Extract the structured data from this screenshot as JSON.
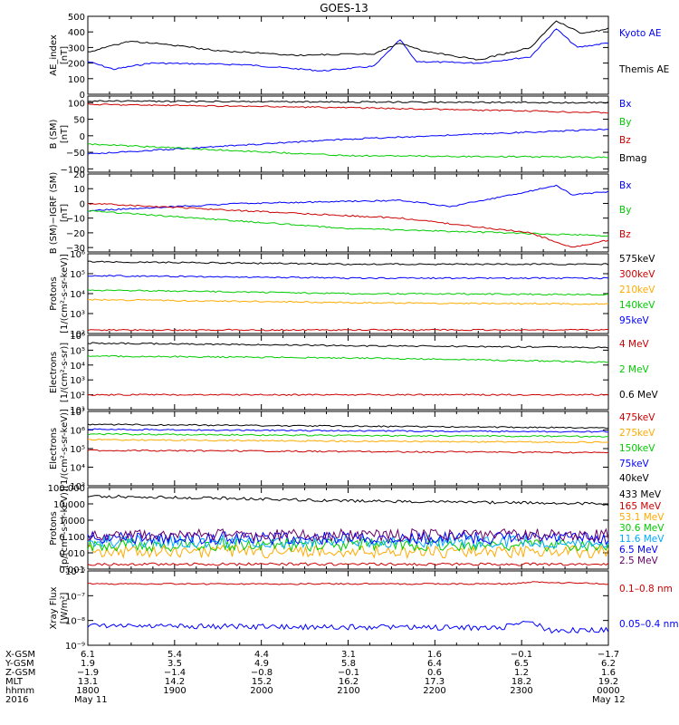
{
  "title": "GOES-13",
  "chart_data": [
    {
      "type": "line",
      "ylabel": [
        "AE_index",
        "[nT]"
      ],
      "ylim": [
        0,
        500
      ],
      "yscale": "linear",
      "yticks": [
        0,
        100,
        200,
        300,
        400,
        500
      ],
      "yticklabels": [
        "0",
        "100",
        "200",
        "300",
        "400",
        "500"
      ],
      "series": [
        {
          "name": "Kyoto AE",
          "color": "#0000ff",
          "keypoints": [
            [
              0,
              210
            ],
            [
              0.05,
              160
            ],
            [
              0.12,
              200
            ],
            [
              0.3,
              190
            ],
            [
              0.45,
              150
            ],
            [
              0.55,
              180
            ],
            [
              0.6,
              350
            ],
            [
              0.63,
              210
            ],
            [
              0.75,
              200
            ],
            [
              0.85,
              240
            ],
            [
              0.9,
              420
            ],
            [
              0.94,
              300
            ],
            [
              1.0,
              330
            ]
          ]
        },
        {
          "name": "Themis AE",
          "color": "#000000",
          "keypoints": [
            [
              0,
              270
            ],
            [
              0.08,
              340
            ],
            [
              0.15,
              320
            ],
            [
              0.25,
              280
            ],
            [
              0.4,
              250
            ],
            [
              0.55,
              260
            ],
            [
              0.6,
              330
            ],
            [
              0.64,
              280
            ],
            [
              0.75,
              220
            ],
            [
              0.85,
              300
            ],
            [
              0.9,
              470
            ],
            [
              0.95,
              390
            ],
            [
              1.0,
              420
            ]
          ]
        }
      ]
    },
    {
      "type": "line",
      "ylabel": [
        "B (SM)",
        "[nT]"
      ],
      "ylim": [
        -110,
        120
      ],
      "yscale": "linear",
      "yticks": [
        -100,
        -50,
        0,
        50,
        100
      ],
      "yticklabels": [
        "−100",
        "−50",
        "0",
        "50",
        "100"
      ],
      "series": [
        {
          "name": "Bx",
          "color": "#0000ff",
          "keypoints": [
            [
              0,
              -55
            ],
            [
              0.5,
              -10
            ],
            [
              1.0,
              20
            ]
          ]
        },
        {
          "name": "By",
          "color": "#00cc00",
          "keypoints": [
            [
              0,
              -25
            ],
            [
              0.5,
              -60
            ],
            [
              1.0,
              -65
            ]
          ]
        },
        {
          "name": "Bz",
          "color": "#cc0000",
          "keypoints": [
            [
              0,
              95
            ],
            [
              0.5,
              85
            ],
            [
              1.0,
              70
            ]
          ]
        },
        {
          "name": "Bmag",
          "color": "#000000",
          "keypoints": [
            [
              0,
              105
            ],
            [
              0.5,
              102
            ],
            [
              1.0,
              100
            ]
          ]
        }
      ]
    },
    {
      "type": "line",
      "ylabel": [
        "B (SM)−IGRF (SM)",
        "[nT]"
      ],
      "ylim": [
        -33,
        20
      ],
      "yscale": "linear",
      "yticks": [
        -30,
        -20,
        -10,
        0,
        10,
        20
      ],
      "yticklabels": [
        "−30",
        "−20",
        "−10",
        "0",
        "10",
        "20"
      ],
      "series": [
        {
          "name": "Bx",
          "color": "#0000ff",
          "keypoints": [
            [
              0,
              -5
            ],
            [
              0.3,
              0
            ],
            [
              0.6,
              2
            ],
            [
              0.7,
              -2
            ],
            [
              0.9,
              12
            ],
            [
              0.93,
              6
            ],
            [
              1.0,
              8
            ]
          ]
        },
        {
          "name": "By",
          "color": "#00cc00",
          "keypoints": [
            [
              0,
              -5
            ],
            [
              0.5,
              -17
            ],
            [
              1.0,
              -22
            ]
          ]
        },
        {
          "name": "Bz",
          "color": "#cc0000",
          "keypoints": [
            [
              0,
              0
            ],
            [
              0.3,
              -5
            ],
            [
              0.6,
              -10
            ],
            [
              0.85,
              -20
            ],
            [
              0.93,
              -30
            ],
            [
              1.0,
              -25
            ]
          ]
        }
      ]
    },
    {
      "type": "line",
      "ylabel": [
        "Protons",
        "[1/(cm²-s-sr-keV)]"
      ],
      "ylim": [
        100,
        1000000
      ],
      "yscale": "log",
      "yticks": [
        100,
        1000,
        10000,
        100000,
        1000000
      ],
      "yticklabels": [
        "10²",
        "10³",
        "10⁴",
        "10⁵",
        "10⁶"
      ],
      "series": [
        {
          "name": "575keV",
          "color": "#000000",
          "keypoints": [
            [
              0,
              400000
            ],
            [
              0.5,
              300000
            ],
            [
              1.0,
              300000
            ]
          ]
        },
        {
          "name": "300keV",
          "color": "#cc0000",
          "keypoints": [
            [
              0,
              150
            ],
            [
              1.0,
              150
            ]
          ]
        },
        {
          "name": "210keV",
          "color": "#ffaa00",
          "keypoints": [
            [
              0,
              5000
            ],
            [
              0.5,
              3500
            ],
            [
              1.0,
              3000
            ]
          ]
        },
        {
          "name": "140keV",
          "color": "#00cc00",
          "keypoints": [
            [
              0,
              15000
            ],
            [
              0.5,
              10000
            ],
            [
              1.0,
              9000
            ]
          ]
        },
        {
          "name": "95keV",
          "color": "#0000ff",
          "keypoints": [
            [
              0,
              80000
            ],
            [
              0.5,
              60000
            ],
            [
              1.0,
              60000
            ]
          ]
        }
      ]
    },
    {
      "type": "line",
      "ylabel": [
        "Electrons",
        "[1/(cm²-s-sr)]"
      ],
      "ylim": [
        10,
        1000000
      ],
      "yscale": "log",
      "yticks": [
        10,
        100,
        1000,
        10000,
        100000,
        1000000
      ],
      "yticklabels": [
        "10¹",
        "10²",
        "10³",
        "10⁴",
        "10⁵",
        "10⁶"
      ],
      "series": [
        {
          "name": "4 MeV",
          "color": "#cc0000",
          "keypoints": [
            [
              0,
              100
            ],
            [
              1.0,
              100
            ]
          ]
        },
        {
          "name": "2 MeV",
          "color": "#00cc00",
          "keypoints": [
            [
              0,
              40000
            ],
            [
              0.5,
              30000
            ],
            [
              1.0,
              15000
            ]
          ]
        },
        {
          "name": "0.6 MeV",
          "color": "#000000",
          "keypoints": [
            [
              0,
              300000
            ],
            [
              0.5,
              200000
            ],
            [
              1.0,
              150000
            ]
          ]
        }
      ]
    },
    {
      "type": "line",
      "ylabel": [
        "Electrons",
        "[1/(cm²-s-sr-keV)]"
      ],
      "ylim": [
        1000,
        10000000
      ],
      "yscale": "log",
      "yticks": [
        1000,
        10000,
        100000,
        1000000,
        10000000
      ],
      "yticklabels": [
        "10³",
        "10⁴",
        "10⁵",
        "10⁶",
        "10⁷"
      ],
      "series": [
        {
          "name": "475keV",
          "color": "#cc0000",
          "keypoints": [
            [
              0,
              80000
            ],
            [
              0.5,
              70000
            ],
            [
              1.0,
              60000
            ]
          ]
        },
        {
          "name": "275keV",
          "color": "#ffaa00",
          "keypoints": [
            [
              0,
              300000
            ],
            [
              0.5,
              250000
            ],
            [
              1.0,
              220000
            ]
          ]
        },
        {
          "name": "150keV",
          "color": "#00cc00",
          "keypoints": [
            [
              0,
              600000
            ],
            [
              0.5,
              500000
            ],
            [
              1.0,
              450000
            ]
          ]
        },
        {
          "name": "75keV",
          "color": "#0000ff",
          "keypoints": [
            [
              0,
              1100000
            ],
            [
              0.5,
              900000
            ],
            [
              1.0,
              800000
            ]
          ]
        },
        {
          "name": "40keV",
          "color": "#000000",
          "keypoints": [
            [
              0,
              2000000
            ],
            [
              0.5,
              1600000
            ],
            [
              1.0,
              1300000
            ]
          ]
        }
      ]
    },
    {
      "type": "line",
      "ylabel": [
        "Protons",
        "[p/(cm²-s-sr-keV)]"
      ],
      "ylim": [
        0.001,
        100
      ],
      "yscale": "log",
      "yticks": [
        0.001,
        0.01,
        0.1,
        1,
        10,
        100
      ],
      "yticklabels": [
        "0.001",
        "0.010",
        "0.100",
        "1.000",
        "10.000",
        "100.000"
      ],
      "series": [
        {
          "name": "433 MeV",
          "color": "#000000",
          "keypoints": [
            [
              0,
              30
            ],
            [
              0.5,
              15
            ],
            [
              1.0,
              10
            ]
          ]
        },
        {
          "name": "165 MeV",
          "color": "#cc0000",
          "keypoints": [
            [
              0,
              0.002
            ],
            [
              1.0,
              0.002
            ]
          ]
        },
        {
          "name": "53.1 MeV",
          "color": "#ffaa00",
          "keypoints": [
            [
              0,
              0.012
            ],
            [
              1.0,
              0.012
            ]
          ]
        },
        {
          "name": "30.6 MeV",
          "color": "#00cc00",
          "keypoints": [
            [
              0,
              0.03
            ],
            [
              1.0,
              0.03
            ]
          ]
        },
        {
          "name": "11.6 MeV",
          "color": "#00aaff",
          "keypoints": [
            [
              0,
              0.05
            ],
            [
              1.0,
              0.05
            ]
          ]
        },
        {
          "name": "6.5 MeV",
          "color": "#0000ff",
          "keypoints": [
            [
              0,
              0.08
            ],
            [
              1.0,
              0.08
            ]
          ]
        },
        {
          "name": "2.5 MeV",
          "color": "#660066",
          "keypoints": [
            [
              0,
              0.12
            ],
            [
              1.0,
              0.12
            ]
          ]
        }
      ]
    },
    {
      "type": "line",
      "ylabel": [
        "Xray Flux",
        "[W/m²]"
      ],
      "ylim": [
        1e-09,
        1e-06
      ],
      "yscale": "log",
      "yticks": [
        1e-09,
        1e-08,
        1e-07,
        1e-06
      ],
      "yticklabels": [
        "10⁻⁹",
        "10⁻⁸",
        "10⁻⁷",
        "10⁻⁶"
      ],
      "series": [
        {
          "name": "0.1–0.8 nm",
          "color": "#cc0000",
          "keypoints": [
            [
              0,
              3e-07
            ],
            [
              0.82,
              3e-07
            ],
            [
              0.85,
              3.5e-07
            ],
            [
              1.0,
              3e-07
            ]
          ]
        },
        {
          "name": "0.05–0.4 nm",
          "color": "#0000ff",
          "keypoints": [
            [
              0,
              6e-09
            ],
            [
              0.8,
              5e-09
            ],
            [
              0.84,
              1e-08
            ],
            [
              0.88,
              4e-09
            ],
            [
              1.0,
              4e-09
            ]
          ]
        }
      ]
    }
  ],
  "x_axis": {
    "row_labels": [
      "X-GSM",
      "Y-GSM",
      "Z-GSM",
      "MLT",
      "hhmm",
      "2016"
    ],
    "columns": [
      [
        "6.1",
        "1.9",
        "−1.9",
        "13.1",
        "1800",
        "May 11"
      ],
      [
        "5.4",
        "3.5",
        "−1.4",
        "14.2",
        "1900",
        ""
      ],
      [
        "4.4",
        "4.9",
        "−0.8",
        "15.2",
        "2000",
        ""
      ],
      [
        "3.1",
        "5.8",
        "−0.1",
        "16.2",
        "2100",
        ""
      ],
      [
        "1.6",
        "6.4",
        "0.6",
        "17.3",
        "2200",
        ""
      ],
      [
        "−0.1",
        "6.5",
        "1.2",
        "18.2",
        "2300",
        ""
      ],
      [
        "−1.7",
        "6.2",
        "1.6",
        "19.2",
        "0000",
        "May 12"
      ]
    ]
  }
}
